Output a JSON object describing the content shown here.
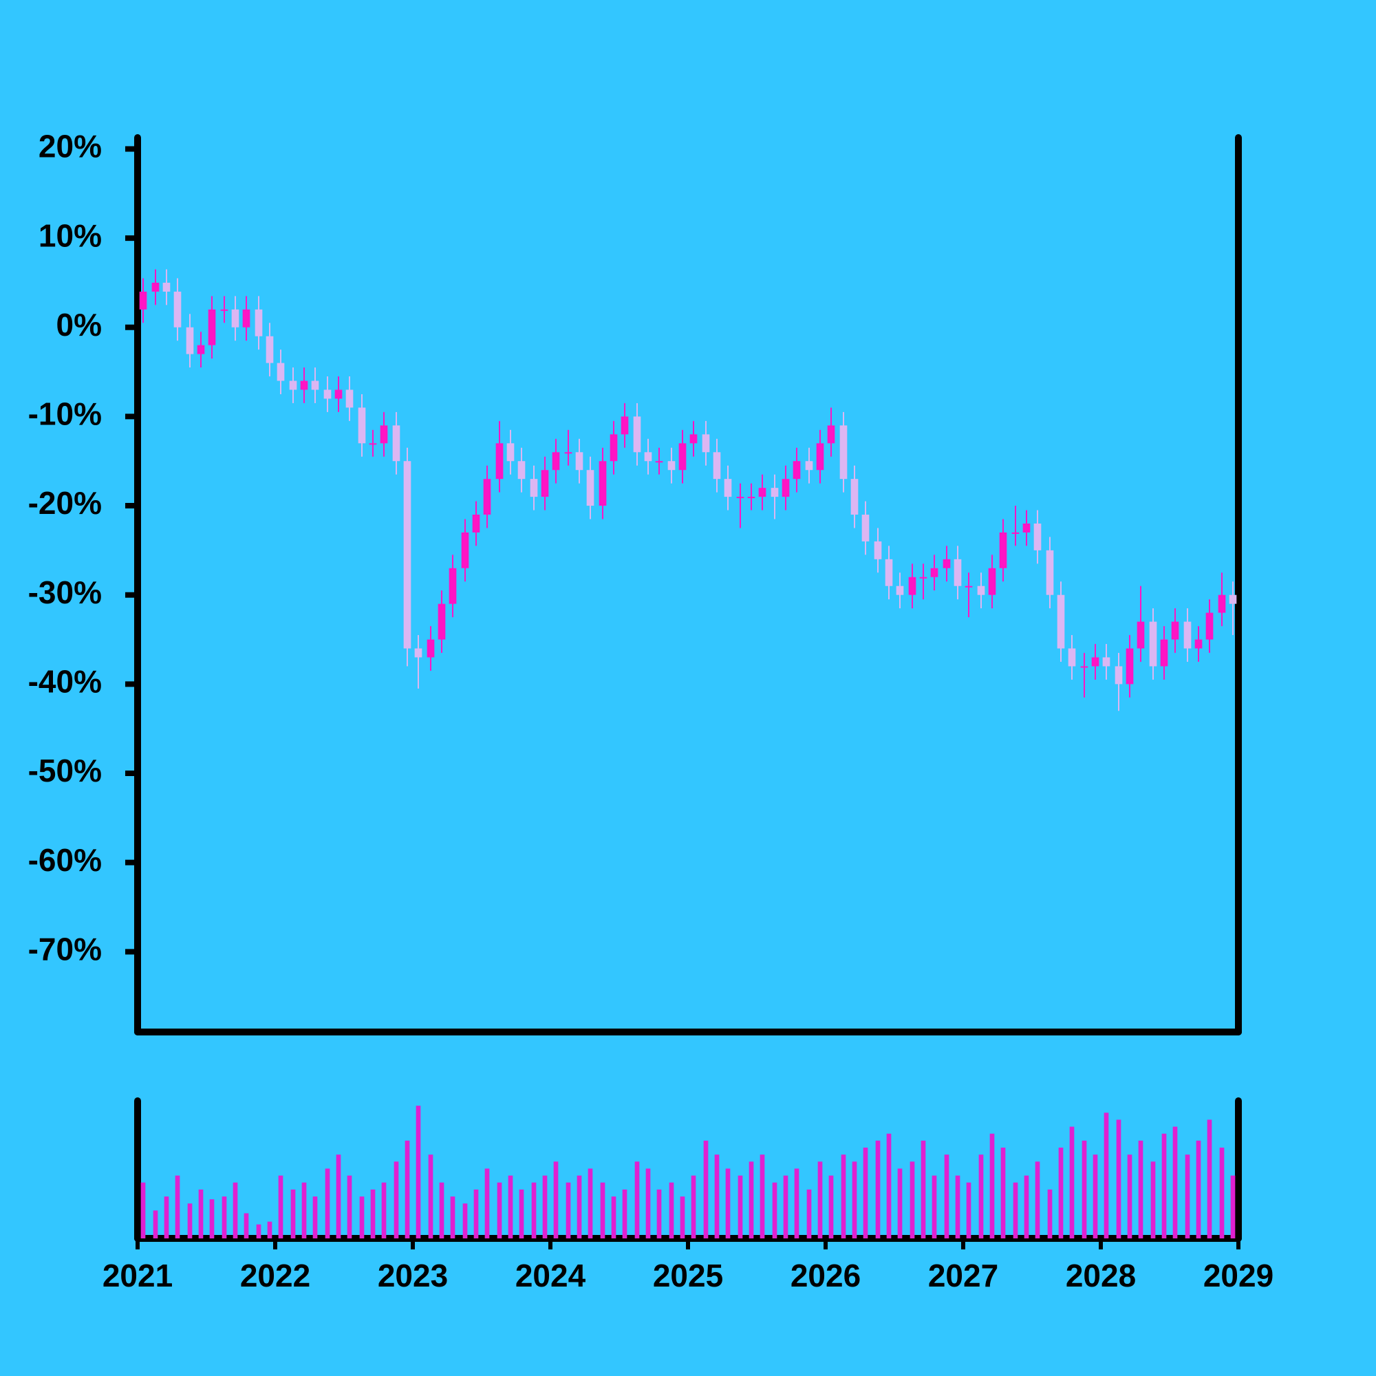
{
  "chart_data": {
    "type": "candlestick",
    "x": [
      2021.04,
      2021.13,
      2021.21,
      2021.29,
      2021.38,
      2021.46,
      2021.54,
      2021.63,
      2021.71,
      2021.79,
      2021.88,
      2021.96,
      2022.04,
      2022.13,
      2022.21,
      2022.29,
      2022.38,
      2022.46,
      2022.54,
      2022.63,
      2022.71,
      2022.79,
      2022.88,
      2022.96,
      2023.04,
      2023.13,
      2023.21,
      2023.29,
      2023.38,
      2023.46,
      2023.54,
      2023.63,
      2023.71,
      2023.79,
      2023.88,
      2023.96,
      2024.04,
      2024.13,
      2024.21,
      2024.29,
      2024.38,
      2024.46,
      2024.54,
      2024.63,
      2024.71,
      2024.79,
      2024.88,
      2024.96,
      2025.04,
      2025.13,
      2025.21,
      2025.29,
      2025.38,
      2025.46,
      2025.54,
      2025.63,
      2025.71,
      2025.79,
      2025.88,
      2025.96,
      2026.04,
      2026.13,
      2026.21,
      2026.29,
      2026.38,
      2026.46,
      2026.54,
      2026.63,
      2026.71,
      2026.79,
      2026.88,
      2026.96,
      2027.04,
      2027.13,
      2027.21,
      2027.29,
      2027.38,
      2027.46,
      2027.54,
      2027.63,
      2027.71,
      2027.79,
      2027.88,
      2027.96,
      2028.04,
      2028.13,
      2028.21,
      2028.29,
      2028.38,
      2028.46,
      2028.54,
      2028.63,
      2028.71,
      2028.79,
      2028.88,
      2028.96
    ],
    "open": [
      2,
      4,
      5,
      4,
      0,
      -3,
      -2,
      2,
      2,
      0,
      2,
      -1,
      -4,
      -6,
      -7,
      -6,
      -7,
      -8,
      -7,
      -9,
      -13,
      -13,
      -11,
      -15,
      -36,
      -37,
      -35,
      -31,
      -27,
      -23,
      -21,
      -17,
      -13,
      -15,
      -17,
      -19,
      -16,
      -14,
      -14,
      -16,
      -20,
      -15,
      -12,
      -10,
      -14,
      -15,
      -15,
      -16,
      -13,
      -12,
      -14,
      -17,
      -19,
      -19,
      -19,
      -18,
      -19,
      -17,
      -15,
      -16,
      -13,
      -11,
      -17,
      -21,
      -24,
      -26,
      -29,
      -30,
      -28,
      -28,
      -27,
      -26,
      -29,
      -29,
      -30,
      -27,
      -23,
      -23,
      -22,
      -25,
      -30,
      -36,
      -38,
      -38,
      -37,
      -38,
      -40,
      -36,
      -33,
      -38,
      -35,
      -33,
      -36,
      -35,
      -32,
      -30
    ],
    "high": [
      5.5,
      6.5,
      6.5,
      5.5,
      1.5,
      -0.5,
      3.5,
      3.5,
      3.5,
      3.5,
      3.5,
      0.5,
      -2.5,
      -4.5,
      -4.5,
      -4.5,
      -5.5,
      -5.5,
      -5.5,
      -7.5,
      -11.5,
      -9.5,
      -9.5,
      -13.5,
      -34.5,
      -33.5,
      -29.5,
      -25.5,
      -21.5,
      -19.5,
      -15.5,
      -10.5,
      -11.5,
      -13.5,
      -15.5,
      -14.5,
      -12.5,
      -11.5,
      -12.5,
      -14.5,
      -13.5,
      -10.5,
      -8.5,
      -8.5,
      -12.5,
      -13.5,
      -13.5,
      -11.5,
      -10.5,
      -10.5,
      -12.5,
      -15.5,
      -17.5,
      -17.5,
      -16.5,
      -16.5,
      -15.5,
      -13.5,
      -13.5,
      -11.5,
      -9,
      -9.5,
      -15.5,
      -19.5,
      -22.5,
      -24.5,
      -27.5,
      -26.5,
      -26.5,
      -25.5,
      -24.5,
      -24.5,
      -27.5,
      -27.5,
      -25.5,
      -21.5,
      -20,
      -20.5,
      -20.5,
      -23.5,
      -28.5,
      -34.5,
      -36.5,
      -35.5,
      -35.5,
      -36.5,
      -34.5,
      -29,
      -31.5,
      -33.5,
      -31.5,
      -31.5,
      -33.5,
      -30.5,
      -27.5,
      -28.5
    ],
    "low": [
      0.5,
      2.5,
      2.5,
      -1.5,
      -4.5,
      -4.5,
      -3.5,
      0.5,
      -1.5,
      -1.5,
      -2.5,
      -5.5,
      -7.5,
      -8.5,
      -8.5,
      -8.5,
      -9.5,
      -9.5,
      -10.5,
      -14.5,
      -14.5,
      -14.5,
      -16.5,
      -38,
      -40.5,
      -38.5,
      -36.5,
      -32.5,
      -28.5,
      -24.5,
      -22.5,
      -18.5,
      -16.5,
      -18.5,
      -20.5,
      -20.5,
      -17.5,
      -15.5,
      -17.5,
      -21.5,
      -21.5,
      -16.5,
      -13.5,
      -15.5,
      -16.5,
      -16.5,
      -17.5,
      -17.5,
      -14.5,
      -15.5,
      -18.5,
      -20.5,
      -22.5,
      -20.5,
      -20.5,
      -21.5,
      -20.5,
      -18.5,
      -17.5,
      -17.5,
      -14.5,
      -18.5,
      -22.5,
      -25.5,
      -27.5,
      -30.5,
      -31.5,
      -31.5,
      -30.5,
      -29.5,
      -28.5,
      -30.5,
      -32.5,
      -31.5,
      -31.5,
      -28.5,
      -24.5,
      -24.5,
      -26.5,
      -31.5,
      -37.5,
      -39.5,
      -41.5,
      -39.5,
      -39.5,
      -43,
      -41.5,
      -37.5,
      -39.5,
      -39.5,
      -36.5,
      -37.5,
      -37.5,
      -36.5,
      -33.5,
      -34.5
    ],
    "close": [
      4,
      5,
      4,
      0,
      -3,
      -2,
      2,
      2,
      0,
      2,
      -1,
      -4,
      -6,
      -7,
      -6,
      -7,
      -8,
      -7,
      -9,
      -13,
      -13,
      -11,
      -15,
      -36,
      -37,
      -35,
      -31,
      -27,
      -23,
      -21,
      -17,
      -13,
      -15,
      -17,
      -19,
      -16,
      -14,
      -14,
      -16,
      -20,
      -15,
      -12,
      -10,
      -14,
      -15,
      -15,
      -16,
      -13,
      -12,
      -14,
      -17,
      -19,
      -19,
      -19,
      -18,
      -19,
      -17,
      -15,
      -16,
      -13,
      -11,
      -17,
      -21,
      -24,
      -26,
      -29,
      -30,
      -28,
      -28,
      -27,
      -26,
      -29,
      -29,
      -30,
      -27,
      -23,
      -23,
      -22,
      -25,
      -30,
      -36,
      -38,
      -38,
      -37,
      -38,
      -40,
      -36,
      -33,
      -38,
      -35,
      -33,
      -36,
      -35,
      -32,
      -30,
      -31
    ],
    "up_color": "#ff14c4",
    "down_color": "#dcb6f2",
    "xlim": [
      2021,
      2029
    ],
    "xticks": [
      2021,
      2022,
      2023,
      2024,
      2025,
      2026,
      2027,
      2028,
      2029
    ],
    "ylim": [
      -79,
      21.5
    ],
    "yticks": [
      {
        "value": 20,
        "label": "20%"
      },
      {
        "value": 10,
        "label": "10%"
      },
      {
        "value": 0,
        "label": "0%"
      },
      {
        "value": -10,
        "label": "-10%"
      },
      {
        "value": -20,
        "label": "-20%"
      },
      {
        "value": -30,
        "label": "-30%"
      },
      {
        "value": -40,
        "label": "-40%"
      },
      {
        "value": -50,
        "label": "-50%"
      },
      {
        "value": -60,
        "label": "-60%"
      },
      {
        "value": -70,
        "label": "-70%"
      }
    ],
    "volume": {
      "color": "#e020d0",
      "ylim": [
        0,
        100
      ],
      "values": [
        40,
        20,
        30,
        45,
        25,
        35,
        28,
        30,
        40,
        18,
        10,
        12,
        45,
        35,
        40,
        30,
        50,
        60,
        45,
        30,
        35,
        40,
        55,
        70,
        95,
        60,
        40,
        30,
        25,
        35,
        50,
        40,
        45,
        35,
        40,
        45,
        55,
        40,
        45,
        50,
        40,
        30,
        35,
        55,
        50,
        35,
        40,
        30,
        45,
        70,
        60,
        50,
        45,
        55,
        60,
        40,
        45,
        50,
        35,
        55,
        45,
        60,
        55,
        65,
        70,
        75,
        50,
        55,
        70,
        45,
        60,
        45,
        40,
        60,
        75,
        65,
        40,
        45,
        55,
        35,
        65,
        80,
        70,
        60,
        90,
        85,
        60,
        70,
        55,
        75,
        80,
        60,
        70,
        85,
        65,
        45
      ]
    }
  }
}
